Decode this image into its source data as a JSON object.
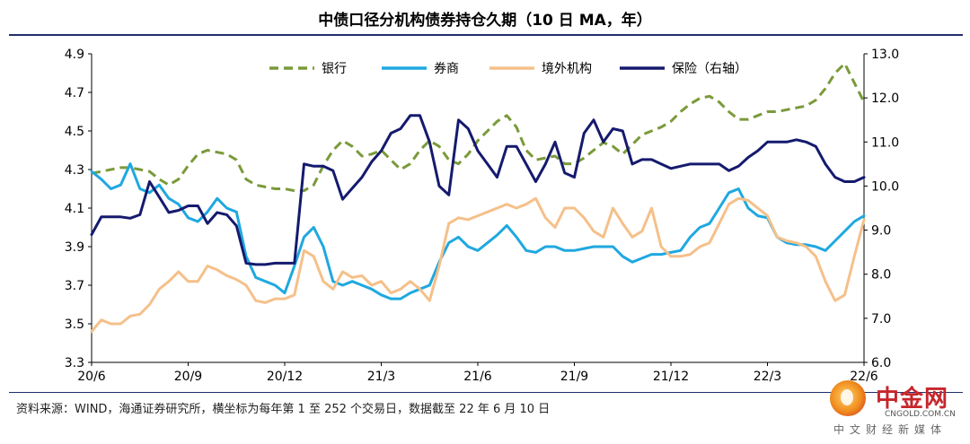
{
  "title": "中债口径分机构债券持仓久期（10 日 MA，年）",
  "source": "资料来源：WIND，海通证券研究所，横坐标为每年第 1 至 252 个交易日，数据截至 22 年 6 月 10 日",
  "watermark": {
    "name": "中金网",
    "url": "CNGOLD.COM.CN",
    "sub": "中文财经新媒体"
  },
  "colors": {
    "bank": "#7a9a3a",
    "broker": "#1fa8e0",
    "foreign": "#f5c08a",
    "insurance": "#151a6e"
  },
  "chart_data": {
    "type": "line",
    "x_ticks": [
      "20/6",
      "20/9",
      "20/12",
      "21/3",
      "21/6",
      "21/9",
      "21/12",
      "22/3",
      "22/6"
    ],
    "x_range": [
      "20/6",
      "22/6"
    ],
    "y_left": {
      "range": [
        3.3,
        4.9
      ],
      "ticks": [
        "3.3",
        "3.5",
        "3.7",
        "3.9",
        "4.1",
        "4.3",
        "4.5",
        "4.7",
        "4.9"
      ]
    },
    "y_right": {
      "range": [
        6.0,
        13.0
      ],
      "ticks": [
        "6.0",
        "7.0",
        "8.0",
        "9.0",
        "10.0",
        "11.0",
        "12.0",
        "13.0"
      ]
    },
    "legend_position": "top",
    "series": [
      {
        "name": "银行",
        "axis": "left",
        "style": "dashed",
        "color": "#7a9a3a",
        "x": [
          0,
          0.3,
          0.6,
          0.9,
          1.2,
          1.5,
          1.8,
          2.1,
          2.4,
          2.7,
          3.0,
          3.3,
          3.6,
          3.9,
          4.2,
          4.5,
          4.8,
          5.1,
          5.4,
          5.7,
          6.0,
          6.3,
          6.6,
          6.9,
          7.2,
          7.5,
          7.8,
          8.1,
          8.4,
          8.7,
          9.0,
          9.3,
          9.6,
          9.9,
          10.2,
          10.5,
          10.8,
          11.1,
          11.4,
          11.7,
          12.0,
          12.3,
          12.6,
          12.9,
          13.2,
          13.5,
          13.8,
          14.1,
          14.4,
          14.7,
          15.0,
          15.3,
          15.6,
          15.9,
          16.2,
          16.5,
          16.8,
          17.1,
          17.4,
          17.7,
          18.0,
          18.3,
          18.6,
          18.9,
          19.2,
          19.5,
          19.8,
          20.1,
          20.4,
          20.7,
          21.0,
          21.3,
          21.6,
          21.9,
          22.2,
          22.5,
          22.8,
          23.1,
          23.4,
          23.7,
          24.0
        ],
        "values": [
          4.28,
          4.29,
          4.3,
          4.31,
          4.31,
          4.3,
          4.29,
          4.25,
          4.22,
          4.25,
          4.32,
          4.38,
          4.4,
          4.39,
          4.38,
          4.35,
          4.25,
          4.22,
          4.21,
          4.2,
          4.2,
          4.19,
          4.19,
          4.22,
          4.32,
          4.4,
          4.45,
          4.42,
          4.37,
          4.38,
          4.4,
          4.35,
          4.3,
          4.33,
          4.4,
          4.45,
          4.42,
          4.35,
          4.33,
          4.38,
          4.45,
          4.5,
          4.55,
          4.58,
          4.52,
          4.4,
          4.35,
          4.36,
          4.37,
          4.33,
          4.33,
          4.36,
          4.4,
          4.44,
          4.42,
          4.38,
          4.43,
          4.48,
          4.5,
          4.52,
          4.55,
          4.6,
          4.64,
          4.67,
          4.68,
          4.65,
          4.6,
          4.56,
          4.56,
          4.58,
          4.6,
          4.6,
          4.61,
          4.62,
          4.63,
          4.66,
          4.72,
          4.8,
          4.85,
          4.75,
          4.65
        ]
      },
      {
        "name": "券商",
        "axis": "left",
        "style": "solid",
        "color": "#1fa8e0",
        "x": [
          0,
          0.3,
          0.6,
          0.9,
          1.2,
          1.5,
          1.8,
          2.1,
          2.4,
          2.7,
          3.0,
          3.3,
          3.6,
          3.9,
          4.2,
          4.5,
          4.8,
          5.1,
          5.4,
          5.7,
          6.0,
          6.3,
          6.6,
          6.9,
          7.2,
          7.5,
          7.8,
          8.1,
          8.4,
          8.7,
          9.0,
          9.3,
          9.6,
          9.9,
          10.2,
          10.5,
          10.8,
          11.1,
          11.4,
          11.7,
          12.0,
          12.3,
          12.6,
          12.9,
          13.2,
          13.5,
          13.8,
          14.1,
          14.4,
          14.7,
          15.0,
          15.3,
          15.6,
          15.9,
          16.2,
          16.5,
          16.8,
          17.1,
          17.4,
          17.7,
          18.0,
          18.3,
          18.6,
          18.9,
          19.2,
          19.5,
          19.8,
          20.1,
          20.4,
          20.7,
          21.0,
          21.3,
          21.6,
          21.9,
          22.2,
          22.5,
          22.8,
          23.1,
          23.4,
          23.7,
          24.0
        ],
        "values": [
          4.29,
          4.25,
          4.2,
          4.22,
          4.33,
          4.2,
          4.18,
          4.22,
          4.15,
          4.12,
          4.05,
          4.03,
          4.08,
          4.15,
          4.1,
          4.08,
          3.85,
          3.74,
          3.72,
          3.7,
          3.66,
          3.8,
          3.95,
          4.0,
          3.9,
          3.72,
          3.7,
          3.72,
          3.7,
          3.68,
          3.65,
          3.63,
          3.63,
          3.66,
          3.68,
          3.7,
          3.82,
          3.92,
          3.95,
          3.9,
          3.88,
          3.92,
          3.96,
          4.01,
          3.95,
          3.88,
          3.87,
          3.9,
          3.9,
          3.88,
          3.88,
          3.89,
          3.9,
          3.9,
          3.9,
          3.85,
          3.82,
          3.84,
          3.86,
          3.86,
          3.87,
          3.88,
          3.95,
          4.0,
          4.02,
          4.1,
          4.18,
          4.2,
          4.1,
          4.06,
          4.05,
          3.95,
          3.92,
          3.91,
          3.91,
          3.9,
          3.88,
          3.93,
          3.98,
          4.03,
          4.06
        ]
      },
      {
        "name": "境外机构",
        "axis": "left",
        "style": "solid",
        "color": "#f5c08a",
        "x": [
          0,
          0.3,
          0.6,
          0.9,
          1.2,
          1.5,
          1.8,
          2.1,
          2.4,
          2.7,
          3.0,
          3.3,
          3.6,
          3.9,
          4.2,
          4.5,
          4.8,
          5.1,
          5.4,
          5.7,
          6.0,
          6.3,
          6.6,
          6.9,
          7.2,
          7.5,
          7.8,
          8.1,
          8.4,
          8.7,
          9.0,
          9.3,
          9.6,
          9.9,
          10.2,
          10.5,
          10.8,
          11.1,
          11.4,
          11.7,
          12.0,
          12.3,
          12.6,
          12.9,
          13.2,
          13.5,
          13.8,
          14.1,
          14.4,
          14.7,
          15.0,
          15.3,
          15.6,
          15.9,
          16.2,
          16.5,
          16.8,
          17.1,
          17.4,
          17.7,
          18.0,
          18.3,
          18.6,
          18.9,
          19.2,
          19.5,
          19.8,
          20.1,
          20.4,
          20.7,
          21.0,
          21.3,
          21.6,
          21.9,
          22.2,
          22.5,
          22.8,
          23.1,
          23.4,
          23.7,
          24.0
        ],
        "values": [
          3.46,
          3.52,
          3.5,
          3.5,
          3.54,
          3.55,
          3.6,
          3.68,
          3.72,
          3.77,
          3.72,
          3.72,
          3.8,
          3.78,
          3.75,
          3.73,
          3.7,
          3.62,
          3.61,
          3.63,
          3.63,
          3.65,
          3.88,
          3.85,
          3.72,
          3.68,
          3.77,
          3.74,
          3.75,
          3.7,
          3.72,
          3.66,
          3.68,
          3.72,
          3.68,
          3.62,
          3.8,
          4.02,
          4.05,
          4.04,
          4.06,
          4.08,
          4.1,
          4.12,
          4.1,
          4.12,
          4.15,
          4.05,
          4.0,
          4.1,
          4.1,
          4.05,
          3.98,
          3.95,
          4.1,
          4.02,
          3.95,
          3.98,
          4.1,
          3.9,
          3.85,
          3.85,
          3.86,
          3.9,
          3.92,
          4.02,
          4.12,
          4.15,
          4.14,
          4.1,
          4.06,
          3.95,
          3.93,
          3.92,
          3.9,
          3.85,
          3.72,
          3.62,
          3.65,
          3.85,
          4.04
        ]
      },
      {
        "name": "保险（右轴）",
        "axis": "right",
        "style": "solid",
        "color": "#151a6e",
        "x": [
          0,
          0.3,
          0.6,
          0.9,
          1.2,
          1.5,
          1.8,
          2.1,
          2.4,
          2.7,
          3.0,
          3.3,
          3.6,
          3.9,
          4.2,
          4.5,
          4.8,
          5.1,
          5.4,
          5.7,
          6.0,
          6.3,
          6.6,
          6.9,
          7.2,
          7.5,
          7.8,
          8.1,
          8.4,
          8.7,
          9.0,
          9.3,
          9.6,
          9.9,
          10.2,
          10.5,
          10.8,
          11.1,
          11.4,
          11.7,
          12.0,
          12.3,
          12.6,
          12.9,
          13.2,
          13.5,
          13.8,
          14.1,
          14.4,
          14.7,
          15.0,
          15.3,
          15.6,
          15.9,
          16.2,
          16.5,
          16.8,
          17.1,
          17.4,
          17.7,
          18.0,
          18.3,
          18.6,
          18.9,
          19.2,
          19.5,
          19.8,
          20.1,
          20.4,
          20.7,
          21.0,
          21.3,
          21.6,
          21.9,
          22.2,
          22.5,
          22.8,
          23.1,
          23.4,
          23.7,
          24.0
        ],
        "values": [
          8.9,
          9.3,
          9.3,
          9.3,
          9.27,
          9.35,
          10.1,
          9.75,
          9.4,
          9.45,
          9.55,
          9.55,
          9.15,
          9.4,
          9.35,
          9.1,
          8.25,
          8.22,
          8.22,
          8.25,
          8.25,
          8.25,
          10.5,
          10.45,
          10.45,
          10.35,
          9.7,
          9.95,
          10.2,
          10.55,
          10.8,
          11.2,
          11.3,
          11.6,
          11.6,
          11.0,
          10.0,
          9.8,
          11.5,
          11.3,
          10.8,
          10.5,
          10.2,
          10.9,
          10.9,
          10.5,
          10.1,
          10.5,
          11.0,
          10.3,
          10.2,
          11.2,
          11.5,
          11.0,
          11.3,
          11.25,
          10.5,
          10.6,
          10.6,
          10.5,
          10.4,
          10.45,
          10.5,
          10.5,
          10.5,
          10.5,
          10.35,
          10.45,
          10.65,
          10.8,
          11.0,
          11.0,
          11.0,
          11.05,
          11.0,
          10.9,
          10.5,
          10.2,
          10.1,
          10.1,
          10.2
        ]
      }
    ]
  }
}
